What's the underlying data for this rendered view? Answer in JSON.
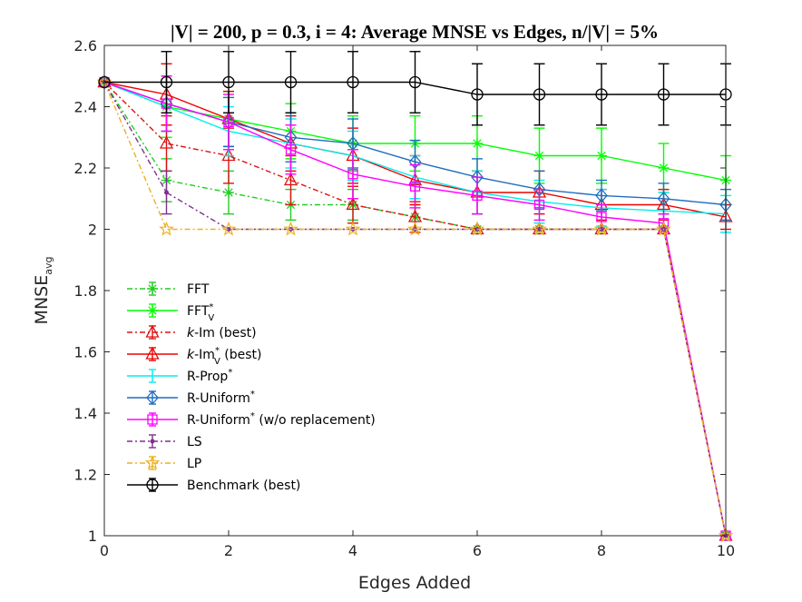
{
  "chart_data": {
    "type": "line",
    "title": "|V| = 200, p = 0.3, i = 4: Average MNSE vs Edges, n/|V| = 5%",
    "xlabel": "Edges Added",
    "ylabel": "MNSE",
    "ylabel_sub": "avg",
    "xlim": [
      0,
      10
    ],
    "ylim": [
      1,
      2.6
    ],
    "xticks": [
      0,
      2,
      4,
      6,
      8,
      10
    ],
    "yticks": [
      1,
      1.2,
      1.4,
      1.6,
      1.8,
      2,
      2.2,
      2.4,
      2.6
    ],
    "ytick_labels": [
      "1",
      "1.2",
      "1.4",
      "1.6",
      "1.8",
      "2",
      "2.2",
      "2.4",
      "2.6"
    ],
    "legend_location": "left-center",
    "x": [
      0,
      1,
      2,
      3,
      4,
      5,
      6,
      7,
      8,
      9,
      10
    ],
    "series": [
      {
        "name": "FFT",
        "legend": {
          "pre": "FFT"
        },
        "color": "#22cc22",
        "dash": "6,3,2,3",
        "marker": "asterisk",
        "values": [
          2.48,
          2.16,
          2.12,
          2.08,
          2.08,
          2.04,
          2.0,
          2.0,
          2.0,
          2.0,
          1.0
        ],
        "errors": [
          0.0,
          0.07,
          0.07,
          0.05,
          0.05,
          0.04,
          0.0,
          0.0,
          0.0,
          0.0,
          0.0
        ]
      },
      {
        "name": "FFT*V",
        "legend": {
          "pre": "FFT",
          "sup": "*",
          "sub": "V"
        },
        "color": "#00ff00",
        "dash": "",
        "marker": "asterisk",
        "values": [
          2.48,
          2.4,
          2.36,
          2.32,
          2.28,
          2.28,
          2.28,
          2.24,
          2.24,
          2.2,
          2.16
        ],
        "errors": [
          0.0,
          0.1,
          0.09,
          0.09,
          0.09,
          0.09,
          0.09,
          0.09,
          0.09,
          0.08,
          0.08
        ]
      },
      {
        "name": "k-Im (best)",
        "legend": {
          "pre": "k",
          "pre_italic": true,
          "post": "-Im (best)"
        },
        "color": "#dd1111",
        "dash": "6,3,2,3",
        "marker": "triangle",
        "values": [
          2.48,
          2.28,
          2.24,
          2.16,
          2.08,
          2.04,
          2.0,
          2.0,
          2.0,
          2.0,
          1.0
        ],
        "errors": [
          0.0,
          0.09,
          0.09,
          0.08,
          0.06,
          0.05,
          0.0,
          0.0,
          0.0,
          0.0,
          0.0
        ]
      },
      {
        "name": "k-Im*V (best)",
        "legend": {
          "pre": "k",
          "pre_italic": true,
          "post": "-Im",
          "sup": "*",
          "sub": "V",
          "tail": " (best)"
        },
        "color": "#ee0000",
        "dash": "",
        "marker": "triangle",
        "values": [
          2.48,
          2.44,
          2.36,
          2.28,
          2.24,
          2.16,
          2.12,
          2.12,
          2.08,
          2.08,
          2.04
        ],
        "errors": [
          0.0,
          0.1,
          0.09,
          0.09,
          0.09,
          0.08,
          0.07,
          0.07,
          0.05,
          0.05,
          0.04
        ]
      },
      {
        "name": "R-Prop*",
        "legend": {
          "pre": "R-Prop",
          "sup": "*"
        },
        "color": "#00eeee",
        "dash": "",
        "marker": "none",
        "values": [
          2.48,
          2.4,
          2.32,
          2.28,
          2.24,
          2.17,
          2.12,
          2.09,
          2.07,
          2.06,
          2.05
        ],
        "errors": [
          0.0,
          0.08,
          0.08,
          0.08,
          0.08,
          0.07,
          0.07,
          0.07,
          0.06,
          0.06,
          0.06
        ]
      },
      {
        "name": "R-Uniform*",
        "legend": {
          "pre": "R-Uniform",
          "sup": "*"
        },
        "color": "#1f6fbf",
        "dash": "",
        "marker": "diamond",
        "values": [
          2.48,
          2.41,
          2.35,
          2.3,
          2.28,
          2.22,
          2.17,
          2.13,
          2.11,
          2.1,
          2.08
        ],
        "errors": [
          0.0,
          0.09,
          0.08,
          0.08,
          0.08,
          0.07,
          0.06,
          0.06,
          0.05,
          0.05,
          0.05
        ]
      },
      {
        "name": "R-Uniform* (w/o replacement)",
        "legend": {
          "pre": "R-Uniform",
          "sup": "*",
          "tail": " (w/o replacement)"
        },
        "color": "#ff00ff",
        "dash": "",
        "marker": "square",
        "values": [
          2.48,
          2.41,
          2.35,
          2.26,
          2.18,
          2.14,
          2.11,
          2.08,
          2.04,
          2.02,
          1.0
        ],
        "errors": [
          0.0,
          0.09,
          0.09,
          0.08,
          0.08,
          0.07,
          0.06,
          0.05,
          0.04,
          0.03,
          0.0
        ]
      },
      {
        "name": "LS",
        "legend": {
          "pre": "LS"
        },
        "color": "#7e2f8e",
        "dash": "6,3,2,3",
        "marker": "dot",
        "values": [
          2.48,
          2.12,
          2.0,
          2.0,
          2.0,
          2.0,
          2.0,
          2.0,
          2.0,
          2.0,
          1.0
        ],
        "errors": [
          0.0,
          0.07,
          0.0,
          0.0,
          0.0,
          0.0,
          0.0,
          0.0,
          0.0,
          0.0,
          0.0
        ]
      },
      {
        "name": "LP",
        "legend": {
          "pre": "LP"
        },
        "color": "#edb120",
        "dash": "6,3,2,3",
        "marker": "star",
        "values": [
          2.48,
          2.0,
          2.0,
          2.0,
          2.0,
          2.0,
          2.0,
          2.0,
          2.0,
          2.0,
          1.0
        ],
        "errors": [
          0.0,
          0.0,
          0.0,
          0.0,
          0.0,
          0.0,
          0.0,
          0.0,
          0.0,
          0.0,
          0.0
        ]
      },
      {
        "name": "Benchmark (best)",
        "legend": {
          "pre": "Benchmark (best)"
        },
        "color": "#000000",
        "dash": "",
        "marker": "circle",
        "values": [
          2.48,
          2.48,
          2.48,
          2.48,
          2.48,
          2.48,
          2.44,
          2.44,
          2.44,
          2.44,
          2.44
        ],
        "errors": [
          0.0,
          0.1,
          0.1,
          0.1,
          0.1,
          0.1,
          0.1,
          0.1,
          0.1,
          0.1,
          0.1
        ]
      }
    ]
  }
}
